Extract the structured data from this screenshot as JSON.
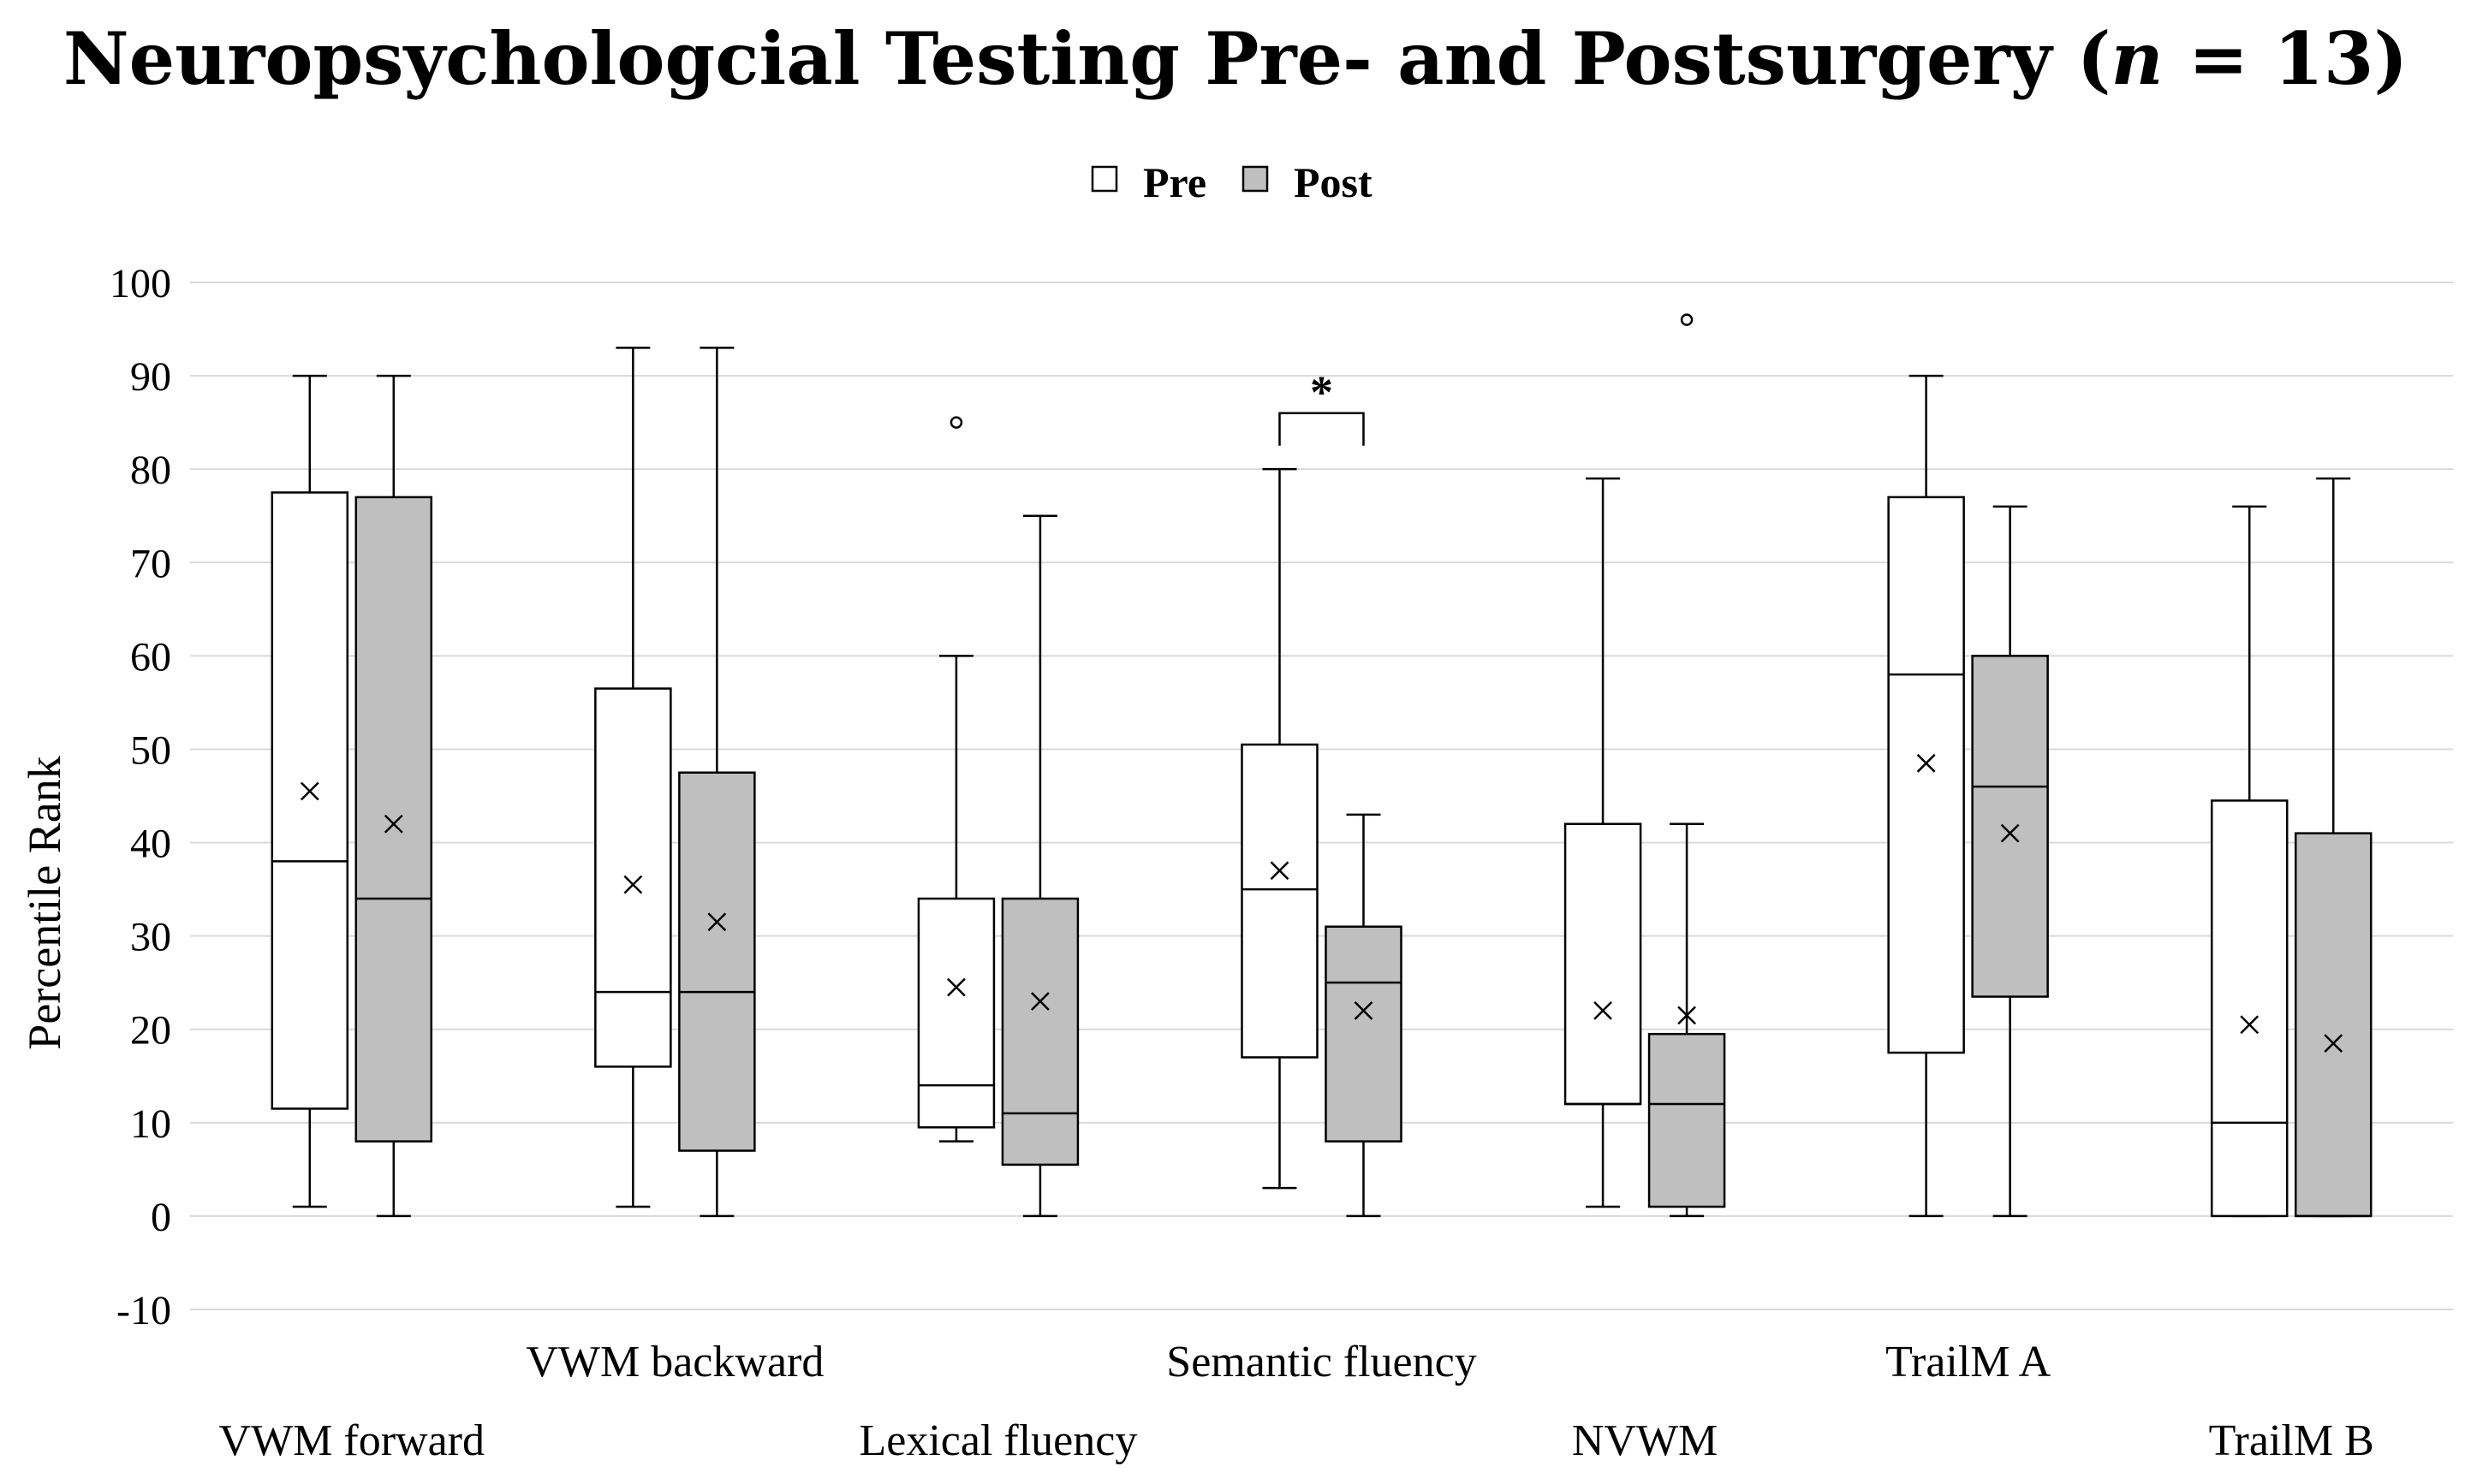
{
  "chart_data": {
    "type": "box",
    "title": {
      "prefix": "Neuropsychologcial Testing Pre- and Postsurgery (",
      "n_symbol": "n",
      "suffix": " = 13)"
    },
    "ylabel": "Percentile Rank",
    "ylim": [
      -10,
      100
    ],
    "yticks": [
      -10,
      0,
      10,
      20,
      30,
      40,
      50,
      60,
      70,
      80,
      90,
      100
    ],
    "grid": true,
    "legend_position": "top-center",
    "series": [
      {
        "name": "Pre",
        "color": "#ffffff"
      },
      {
        "name": "Post",
        "color": "#bfbfbf"
      }
    ],
    "categories": [
      "VWM forward",
      "VWM backward",
      "Lexical fluency",
      "Semantic fluency",
      "NVWM",
      "TrailM A",
      "TrailM B"
    ],
    "boxes": [
      {
        "category": "VWM forward",
        "series": "Pre",
        "min": 1,
        "q1": 11.5,
        "median": 38,
        "q3": 77.5,
        "max": 90,
        "mean": 45.5,
        "outliers": []
      },
      {
        "category": "VWM forward",
        "series": "Post",
        "min": 0,
        "q1": 8,
        "median": 34,
        "q3": 77,
        "max": 90,
        "mean": 42,
        "outliers": []
      },
      {
        "category": "VWM backward",
        "series": "Pre",
        "min": 1,
        "q1": 16,
        "median": 24,
        "q3": 56.5,
        "max": 93,
        "mean": 35.5,
        "outliers": []
      },
      {
        "category": "VWM backward",
        "series": "Post",
        "min": 0,
        "q1": 7,
        "median": 24,
        "q3": 47.5,
        "max": 93,
        "mean": 31.5,
        "outliers": []
      },
      {
        "category": "Lexical fluency",
        "series": "Pre",
        "min": 8,
        "q1": 9.5,
        "median": 14,
        "q3": 34,
        "max": 60,
        "mean": 24.5,
        "outliers": [
          85
        ]
      },
      {
        "category": "Lexical fluency",
        "series": "Post",
        "min": 0,
        "q1": 5.5,
        "median": 11,
        "q3": 34,
        "max": 75,
        "mean": 23,
        "outliers": []
      },
      {
        "category": "Semantic fluency",
        "series": "Pre",
        "min": 3,
        "q1": 17,
        "median": 35,
        "q3": 50.5,
        "max": 80,
        "mean": 37,
        "outliers": []
      },
      {
        "category": "Semantic fluency",
        "series": "Post",
        "min": 0,
        "q1": 8,
        "median": 25,
        "q3": 31,
        "max": 43,
        "mean": 22,
        "outliers": []
      },
      {
        "category": "NVWM",
        "series": "Pre",
        "min": 1,
        "q1": 12,
        "median": 12,
        "q3": 42,
        "max": 79,
        "mean": 22,
        "outliers": []
      },
      {
        "category": "NVWM",
        "series": "Post",
        "min": 0,
        "q1": 1,
        "median": 12,
        "q3": 19.5,
        "max": 42,
        "mean": 21.5,
        "outliers": [
          96
        ]
      },
      {
        "category": "TrailM A",
        "series": "Pre",
        "min": 0,
        "q1": 17.5,
        "median": 58,
        "q3": 77,
        "max": 90,
        "mean": 48.5,
        "outliers": []
      },
      {
        "category": "TrailM A",
        "series": "Post",
        "min": 0,
        "q1": 23.5,
        "median": 46,
        "q3": 60,
        "max": 76,
        "mean": 41,
        "outliers": []
      },
      {
        "category": "TrailM B",
        "series": "Pre",
        "min": 0,
        "q1": 0,
        "median": 10,
        "q3": 44.5,
        "max": 76,
        "mean": 20.5,
        "outliers": []
      },
      {
        "category": "TrailM B",
        "series": "Post",
        "min": 0,
        "q1": 0,
        "median": 0,
        "q3": 41,
        "max": 79,
        "mean": 18.5,
        "outliers": []
      }
    ],
    "annotations": [
      {
        "text": "*",
        "category": "Semantic fluency",
        "y": 86,
        "meaning": "significant Pre vs Post"
      }
    ]
  }
}
